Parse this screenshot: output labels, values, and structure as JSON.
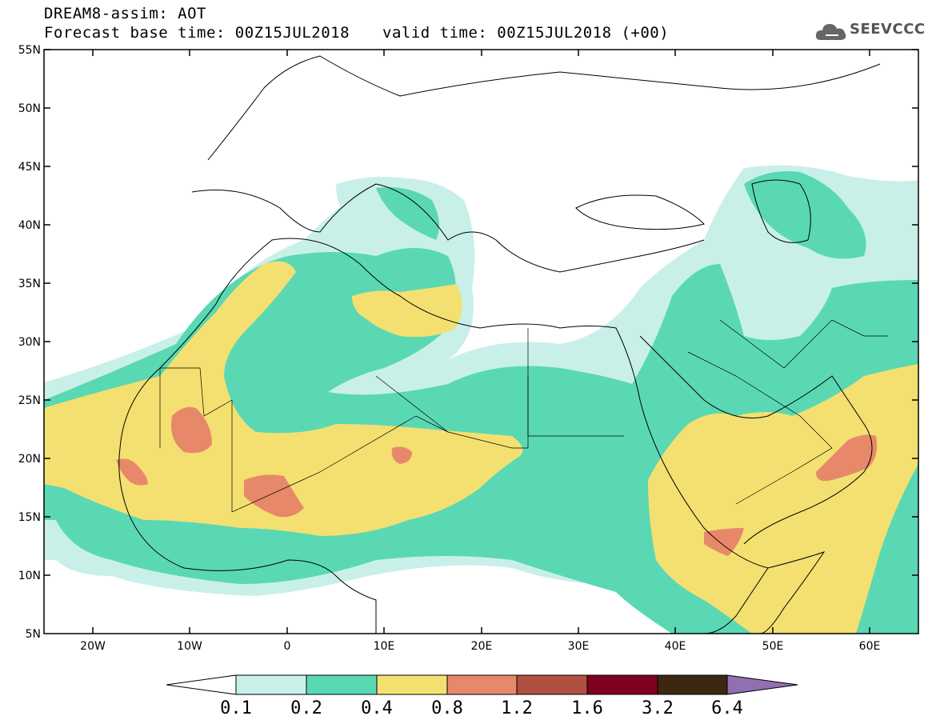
{
  "header": {
    "title": "DREAM8-assim: AOT",
    "base_time": "Forecast base time: 00Z15JUL2018",
    "valid_time": "valid time: 00Z15JUL2018 (+00)"
  },
  "logo": {
    "text": "SEEVCCC",
    "icon": "cloud-icon"
  },
  "map": {
    "lat_labels": [
      "55N",
      "50N",
      "45N",
      "40N",
      "35N",
      "30N",
      "25N",
      "20N",
      "15N",
      "10N",
      "5N"
    ],
    "lon_labels": [
      "20W",
      "10W",
      "0",
      "10E",
      "20E",
      "30E",
      "40E",
      "50E",
      "60E"
    ],
    "lon_range": [
      -25,
      65
    ],
    "lat_range": [
      5,
      55
    ]
  },
  "colorbar": {
    "levels": [
      "0.1",
      "0.2",
      "0.4",
      "0.8",
      "1.2",
      "1.6",
      "3.2",
      "6.4"
    ],
    "colors": [
      "#c8f0e8",
      "#5ad8b4",
      "#f4e070",
      "#e8886a",
      "#b05040",
      "#800020",
      "#3c2810",
      "#9070b0"
    ],
    "under_color": "#ffffff"
  }
}
